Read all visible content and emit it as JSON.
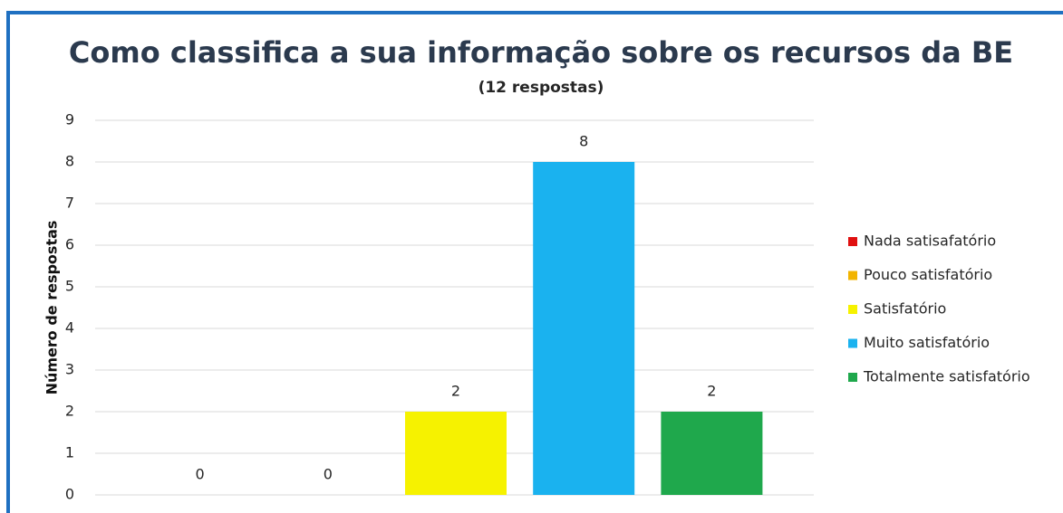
{
  "chart_data": {
    "type": "bar",
    "title": "Como classifica a sua informação sobre os recursos da BE",
    "subtitle": "(12 respostas)",
    "y_label": "Número de respostas",
    "series": [
      {
        "name": "Nada satisafatório",
        "color": "#e01010",
        "values": [
          0
        ]
      },
      {
        "name": "Pouco satisfatório",
        "color": "#f2b400",
        "values": [
          0
        ]
      },
      {
        "name": "Satisfatório",
        "color": "#f6f200",
        "values": [
          2
        ]
      },
      {
        "name": "Muito satisfatório",
        "color": "#1ab2ef",
        "values": [
          8
        ]
      },
      {
        "name": "Totalmente satisfatório",
        "color": "#1fa84c",
        "values": [
          2
        ]
      }
    ],
    "ylim": [
      0,
      9
    ],
    "yticks": [
      0,
      1,
      2,
      3,
      4,
      5,
      6,
      7,
      8,
      9
    ],
    "grid": true,
    "legend": "right"
  }
}
